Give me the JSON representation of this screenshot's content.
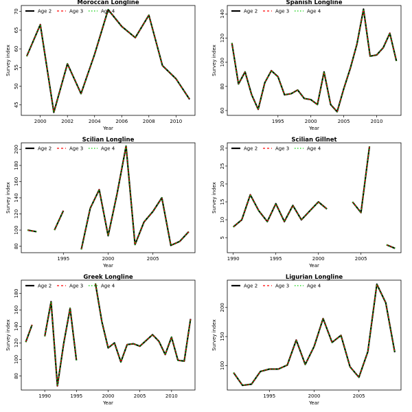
{
  "legend": {
    "entries": [
      {
        "label": "Age 2",
        "color": "#000000",
        "dash": "solid"
      },
      {
        "label": "Age 3",
        "color": "#ff0000",
        "dash": "dashed"
      },
      {
        "label": "Age 4",
        "color": "#00cc00",
        "dash": "dotted"
      }
    ],
    "placement": "top-left"
  },
  "chart_data": [
    {
      "type": "line",
      "title": "Moroccan Longline",
      "xlabel": "Year",
      "ylabel": "Survey index",
      "xlim": [
        1998.6,
        2011.4
      ],
      "ylim": [
        42.2,
        71.6
      ],
      "xticks": [
        2000,
        2002,
        2004,
        2006,
        2008,
        2010
      ],
      "yticks": [
        45,
        50,
        55,
        60,
        65,
        70
      ],
      "x": [
        1999,
        2000,
        2001,
        2002,
        2003,
        2004,
        2005,
        2006,
        2007,
        2008,
        2009,
        2010,
        2011
      ],
      "series": [
        {
          "name": "Age 2",
          "values": [
            58,
            66.5,
            43,
            56,
            48,
            58.5,
            70.5,
            66,
            63,
            69,
            55.5,
            52,
            46.5
          ]
        },
        {
          "name": "Age 3",
          "values": [
            58,
            66.5,
            43,
            56,
            48,
            58.5,
            70.5,
            66,
            63,
            69,
            55.5,
            52,
            46.5
          ]
        },
        {
          "name": "Age 4",
          "values": [
            58,
            66.5,
            43,
            56,
            48,
            58.5,
            70.5,
            66,
            63,
            69,
            55.5,
            52,
            46.5
          ]
        }
      ]
    },
    {
      "type": "line",
      "title": "Spanish Longline",
      "xlabel": "Year",
      "ylabel": "Survey index",
      "xlim": [
        1987.3,
        2013.7
      ],
      "ylim": [
        56,
        147
      ],
      "xticks": [
        1995,
        2000,
        2005,
        2010
      ],
      "yticks": [
        60,
        80,
        100,
        120,
        140
      ],
      "x": [
        1988,
        1989,
        1990,
        1991,
        1992,
        1993,
        1994,
        1995,
        1996,
        1997,
        1998,
        1999,
        2000,
        2001,
        2002,
        2003,
        2004,
        2005,
        2006,
        2007,
        2008,
        2009,
        2010,
        2011,
        2012,
        2013
      ],
      "series": [
        {
          "name": "Age 2",
          "values": [
            116,
            82,
            92,
            73,
            61,
            83,
            93,
            88,
            73,
            74,
            77,
            70,
            69,
            65,
            92,
            65,
            59,
            78,
            95,
            115,
            144,
            105,
            106,
            112,
            124,
            101
          ]
        },
        {
          "name": "Age 3",
          "values": [
            116,
            82,
            92,
            73,
            61,
            83,
            93,
            88,
            73,
            74,
            77,
            70,
            69,
            65,
            92,
            65,
            59,
            78,
            95,
            115,
            144,
            105,
            106,
            112,
            124,
            101
          ]
        },
        {
          "name": "Age 4",
          "values": [
            116,
            82,
            92,
            73,
            61,
            83,
            93,
            88,
            73,
            74,
            77,
            70,
            69,
            65,
            92,
            65,
            59,
            78,
            95,
            115,
            144,
            105,
            106,
            112,
            124,
            101
          ]
        }
      ]
    },
    {
      "type": "line",
      "title": "Scilian Longline",
      "xlabel": "Year",
      "ylabel": "Survey index",
      "xlim": [
        1990.3,
        2009.7
      ],
      "ylim": [
        72,
        208
      ],
      "xticks": [
        1995,
        2000,
        2005
      ],
      "yticks": [
        80,
        100,
        120,
        140,
        160,
        180,
        200
      ],
      "x": [
        1991,
        1992,
        1993,
        1994,
        1995,
        1996,
        1997,
        1998,
        1999,
        2000,
        2001,
        2002,
        2003,
        2004,
        2005,
        2006,
        2007,
        2008,
        2009
      ],
      "series": [
        {
          "name": "Age 2",
          "values": [
            100,
            98,
            null,
            100,
            124,
            null,
            76,
            127,
            150,
            93,
            145,
            204,
            82,
            110,
            123,
            140,
            81,
            86,
            98
          ]
        },
        {
          "name": "Age 3",
          "values": [
            100,
            98,
            null,
            100,
            124,
            null,
            76,
            127,
            150,
            93,
            145,
            204,
            82,
            110,
            123,
            140,
            81,
            86,
            98
          ]
        },
        {
          "name": "Age 4",
          "values": [
            100,
            98,
            null,
            100,
            124,
            null,
            76,
            127,
            150,
            93,
            145,
            204,
            82,
            110,
            123,
            140,
            81,
            86,
            98
          ]
        }
      ]
    },
    {
      "type": "line",
      "title": "Scilian Gillnet",
      "xlabel": "Year",
      "ylabel": "Survey index",
      "xlim": [
        1989.3,
        2009.7
      ],
      "ylim": [
        0.8,
        31.5
      ],
      "xticks": [
        1990,
        1995,
        2000,
        2005
      ],
      "yticks": [
        5,
        10,
        15,
        20,
        25,
        30
      ],
      "x": [
        1990,
        1991,
        1992,
        1993,
        1994,
        1995,
        1996,
        1997,
        1998,
        1999,
        2000,
        2001,
        2002,
        2003,
        2004,
        2005,
        2006,
        2007,
        2008,
        2009
      ],
      "series": [
        {
          "name": "Age 2",
          "values": [
            8,
            10,
            17,
            12.5,
            9.5,
            14.5,
            9.5,
            14,
            10,
            12.5,
            15,
            13,
            null,
            null,
            15,
            12,
            30.5,
            null,
            3,
            2
          ]
        },
        {
          "name": "Age 3",
          "values": [
            8,
            10,
            17,
            12.5,
            9.5,
            14.5,
            9.5,
            14,
            10,
            12.5,
            15,
            13,
            null,
            null,
            15,
            12,
            30.5,
            null,
            3,
            2
          ]
        },
        {
          "name": "Age 4",
          "values": [
            8,
            10,
            17,
            12.5,
            9.5,
            14.5,
            9.5,
            14,
            10,
            12.5,
            15,
            13,
            null,
            null,
            15,
            12,
            30.5,
            null,
            3,
            2
          ]
        }
      ]
    },
    {
      "type": "line",
      "title": "Greek Longline",
      "xlabel": "Year",
      "ylabel": "Survey index",
      "xlim": [
        1986.3,
        2013.7
      ],
      "ylim": [
        63,
        196
      ],
      "xticks": [
        1990,
        1995,
        2000,
        2005,
        2010
      ],
      "yticks": [
        80,
        100,
        120,
        140,
        160,
        180
      ],
      "x": [
        1987,
        1988,
        1989,
        1990,
        1991,
        1992,
        1993,
        1994,
        1995,
        1996,
        1997,
        1998,
        1999,
        2000,
        2001,
        2002,
        2003,
        2004,
        2005,
        2006,
        2007,
        2008,
        2009,
        2010,
        2011,
        2012,
        2013
      ],
      "series": [
        {
          "name": "Age 2",
          "values": [
            121,
            142,
            null,
            128,
            170,
            68,
            120,
            162,
            99,
            null,
            null,
            192,
            146,
            114,
            120,
            97,
            118,
            119,
            116,
            123,
            130,
            122,
            106,
            127,
            99,
            98,
            149
          ]
        },
        {
          "name": "Age 3",
          "values": [
            121,
            142,
            null,
            128,
            170,
            68,
            120,
            162,
            99,
            null,
            null,
            192,
            146,
            114,
            120,
            97,
            118,
            119,
            116,
            123,
            130,
            122,
            106,
            127,
            99,
            98,
            149
          ]
        },
        {
          "name": "Age 4",
          "values": [
            121,
            142,
            null,
            128,
            170,
            68,
            120,
            162,
            99,
            null,
            null,
            192,
            146,
            114,
            120,
            97,
            118,
            119,
            116,
            123,
            130,
            122,
            106,
            127,
            99,
            98,
            149
          ]
        }
      ]
    },
    {
      "type": "line",
      "title": "Ligurian Longline",
      "xlabel": "Year",
      "ylabel": "Survey index",
      "xlim": [
        1990.3,
        2009.7
      ],
      "ylim": [
        58,
        247
      ],
      "xticks": [
        1995,
        2000,
        2005
      ],
      "yticks": [
        100,
        150,
        200
      ],
      "x": [
        1991,
        1992,
        1993,
        1994,
        1995,
        1996,
        1997,
        1998,
        1999,
        2000,
        2001,
        2002,
        2003,
        2004,
        2005,
        2006,
        2007,
        2008,
        2009
      ],
      "series": [
        {
          "name": "Age 2",
          "values": [
            88,
            66,
            68,
            90,
            94,
            94,
            101,
            144,
            102,
            133,
            181,
            140,
            152,
            98,
            80,
            124,
            240,
            208,
            123
          ]
        },
        {
          "name": "Age 3",
          "values": [
            88,
            66,
            68,
            90,
            94,
            94,
            101,
            144,
            102,
            133,
            181,
            140,
            152,
            98,
            80,
            124,
            240,
            208,
            123
          ]
        },
        {
          "name": "Age 4",
          "values": [
            88,
            66,
            68,
            90,
            94,
            94,
            101,
            144,
            102,
            133,
            181,
            140,
            152,
            98,
            80,
            124,
            240,
            208,
            123
          ]
        }
      ]
    }
  ]
}
